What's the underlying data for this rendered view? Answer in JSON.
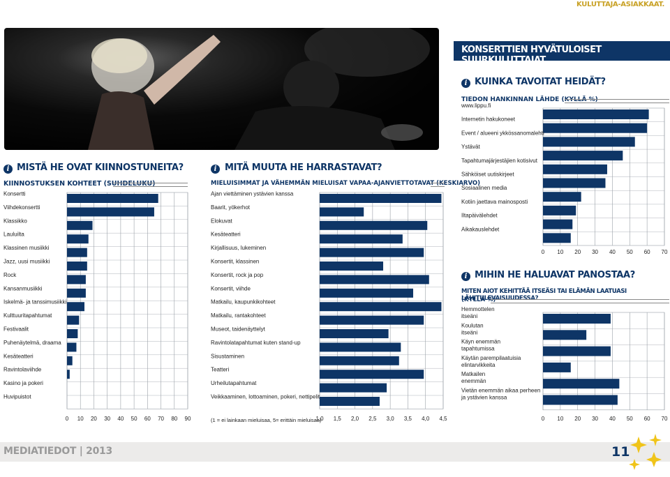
{
  "top_label": "KULUTTAJA-ASIAKKAAT.",
  "main_title": "KONSERTTIEN HYVÄTULOISET SUURKULUTTAJAT",
  "footer": {
    "brand": "MEDIATIEDOT | 2013",
    "page": "11"
  },
  "colors": {
    "navy": "#0e3566",
    "grid": "#9aa0a8",
    "pale": "#e8e8e8"
  },
  "icons": {
    "info": "info-icon",
    "stars": "star-cluster-icon"
  },
  "info_glyph": "i",
  "sections": {
    "interests": {
      "heading": "MISTÄ HE OVAT KIINNOSTUNEITA?",
      "subheading": "KIINNOSTUKSEN KOHTEET (SUHDELUKU)"
    },
    "hobbies": {
      "heading": "MITÄ MUUTA HE HARRASTAVAT?",
      "subheading": "MIELUISIMMAT JA VÄHEMMÄN MIELUISAT VAPAA-AJANVIETTOTAVAT (KESKIARVO)",
      "scale_note": "(1 = ei lainkaan mieluisaa, 5= erittäin mieluisaa)"
    },
    "reach": {
      "heading": "KUINKA TAVOITAT HEIDÄT?",
      "subheading": "TIEDON HANKINNAN LÄHDE (KYLLÄ %)"
    },
    "invest": {
      "heading": "MIHIN HE HALUAVAT PANOSTAA?",
      "subheading_1": "MITEN AIOT KEHITTÄÄ ITSEÄSI TAI ELÄMÄN LAATUASI LÄHITULEVAISUUDESSA?",
      "subheading_2": "(KYLLÄ %)"
    }
  },
  "chart_data": [
    {
      "type": "bar",
      "orientation": "horizontal",
      "title": "KIINNOSTUKSEN KOHTEET (SUHDELUKU)",
      "categories": [
        "Konsertti",
        "Viihdekonsertti",
        "Klassikko",
        "Lauluilta",
        "Klassinen musiikki",
        "Jazz, uusi musiikki",
        "Rock",
        "Kansanmusiikki",
        "Iskelmä- ja tanssimusiikki",
        "Kulttuuritapahtumat",
        "Festivaalit",
        "Puhenäytelmä, draama",
        "Kesäteatteri",
        "Ravintolaviihde",
        "Kasino ja pokeri",
        "Huvipuistot"
      ],
      "values": [
        68,
        65,
        19,
        16,
        15,
        15,
        14,
        14,
        13,
        9,
        8,
        7,
        4,
        2,
        0,
        0
      ],
      "xlim": [
        0,
        90
      ],
      "xticks": [
        "0",
        "10",
        "20",
        "30",
        "40",
        "50",
        "60",
        "70",
        "80",
        "90"
      ],
      "grid": true
    },
    {
      "type": "bar",
      "orientation": "horizontal",
      "title": "MIELUISIMMAT JA VÄHEMMÄN MIELUISAT VAPAA-AJANVIETTOTAVAT (KESKIARVO)",
      "categories": [
        "Ajan viettäminen ystävien kanssa",
        "Baarit, yökerhot",
        "Elokuvat",
        "Kesäteatteri",
        "Kirjallisuus, lukeminen",
        "Konsertit, klassinen",
        "Konsertit, rock ja pop",
        "Konsertit, viihde",
        "Matkailu, kaupunkikohteet",
        "Matkailu, rantakohteet",
        "Museot, taidenäyttelyt",
        "Ravintolatapahtumat kuten stand-up",
        "Sisustaminen",
        "Teatteri",
        "Urheilutapahtumat",
        "Veikkaaminen, lottoaminen, pokeri, nettipelit"
      ],
      "values": [
        4.45,
        2.25,
        4.05,
        3.35,
        3.95,
        2.8,
        4.1,
        3.65,
        4.45,
        3.95,
        2.95,
        3.3,
        3.25,
        3.95,
        2.9,
        2.7
      ],
      "xlim": [
        1.0,
        4.5
      ],
      "xticks": [
        "1,0",
        "1,5",
        "2,0",
        "2,5",
        "3,0",
        "3,5",
        "4,0",
        "4,5"
      ],
      "grid": true
    },
    {
      "type": "bar",
      "orientation": "horizontal",
      "title": "TIEDON HANKINNAN LÄHDE (KYLLÄ %)",
      "categories": [
        "www.lippu.fi",
        "Internetin hakukoneet",
        "Event / alueeni ykkössanomalehti",
        "Ystävät",
        "Tapahtumajärjestäjien kotisivut",
        "Sähköiset uutiskirjeet",
        "Sosiaalinen media",
        "Kotiin jaettava mainosposti",
        "Iltapäivälehdet",
        "Aikakauslehdet"
      ],
      "values": [
        61,
        60,
        53,
        46,
        37,
        36,
        22,
        19,
        17,
        16
      ],
      "xlim": [
        0,
        70
      ],
      "xticks": [
        "0",
        "10",
        "20",
        "30",
        "40",
        "50",
        "60",
        "70"
      ],
      "grid": true
    },
    {
      "type": "bar",
      "orientation": "horizontal",
      "title": "MITEN AIOT KEHITTÄÄ ITSEÄSI TAI ELÄMÄN LAATUASI LÄHITULEVAISUUDESSA? (KYLLÄ %)",
      "categories": [
        "Hemmottelen|itseäni",
        "Koulutan|itseäni",
        "Käyn enemmän|tapahtumissa",
        "Käytän parempilaatuisia|elintarvikkeita",
        "Matkailen|enemmän",
        "Vietän enemmän aikaa perheen|ja ystävien kanssa"
      ],
      "values": [
        39,
        25,
        39,
        16,
        44,
        43
      ],
      "xlim": [
        0,
        70
      ],
      "xticks": [
        "0",
        "10",
        "20",
        "30",
        "40",
        "50",
        "60",
        "70"
      ],
      "grid": true
    }
  ]
}
